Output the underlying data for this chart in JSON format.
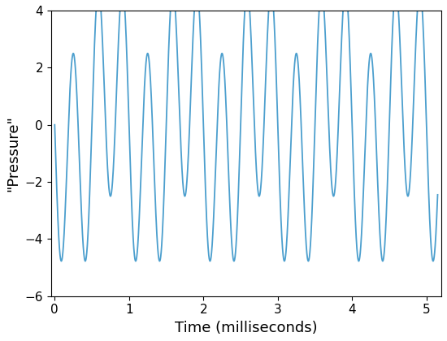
{
  "xlabel": "Time (milliseconds)",
  "ylabel": "\"Pressure\"",
  "xlim": [
    -0.05,
    5.2
  ],
  "ylim": [
    -6,
    4
  ],
  "yticks": [
    -6,
    -4,
    -2,
    0,
    2,
    4
  ],
  "xticks": [
    0,
    1,
    2,
    3,
    4,
    5
  ],
  "line_color": "#4c9fce",
  "line_width": 1.3,
  "t_start": 0,
  "t_end": 5.15,
  "n_points": 5000,
  "freq1": 1.0,
  "freq2": 3.0,
  "amp1": 1.5,
  "amp2": 4.0,
  "phase1": 1.5707963,
  "phase2": 1.5707963,
  "background": "white",
  "figsize": [
    5.5,
    4.2
  ],
  "dpi": 100
}
